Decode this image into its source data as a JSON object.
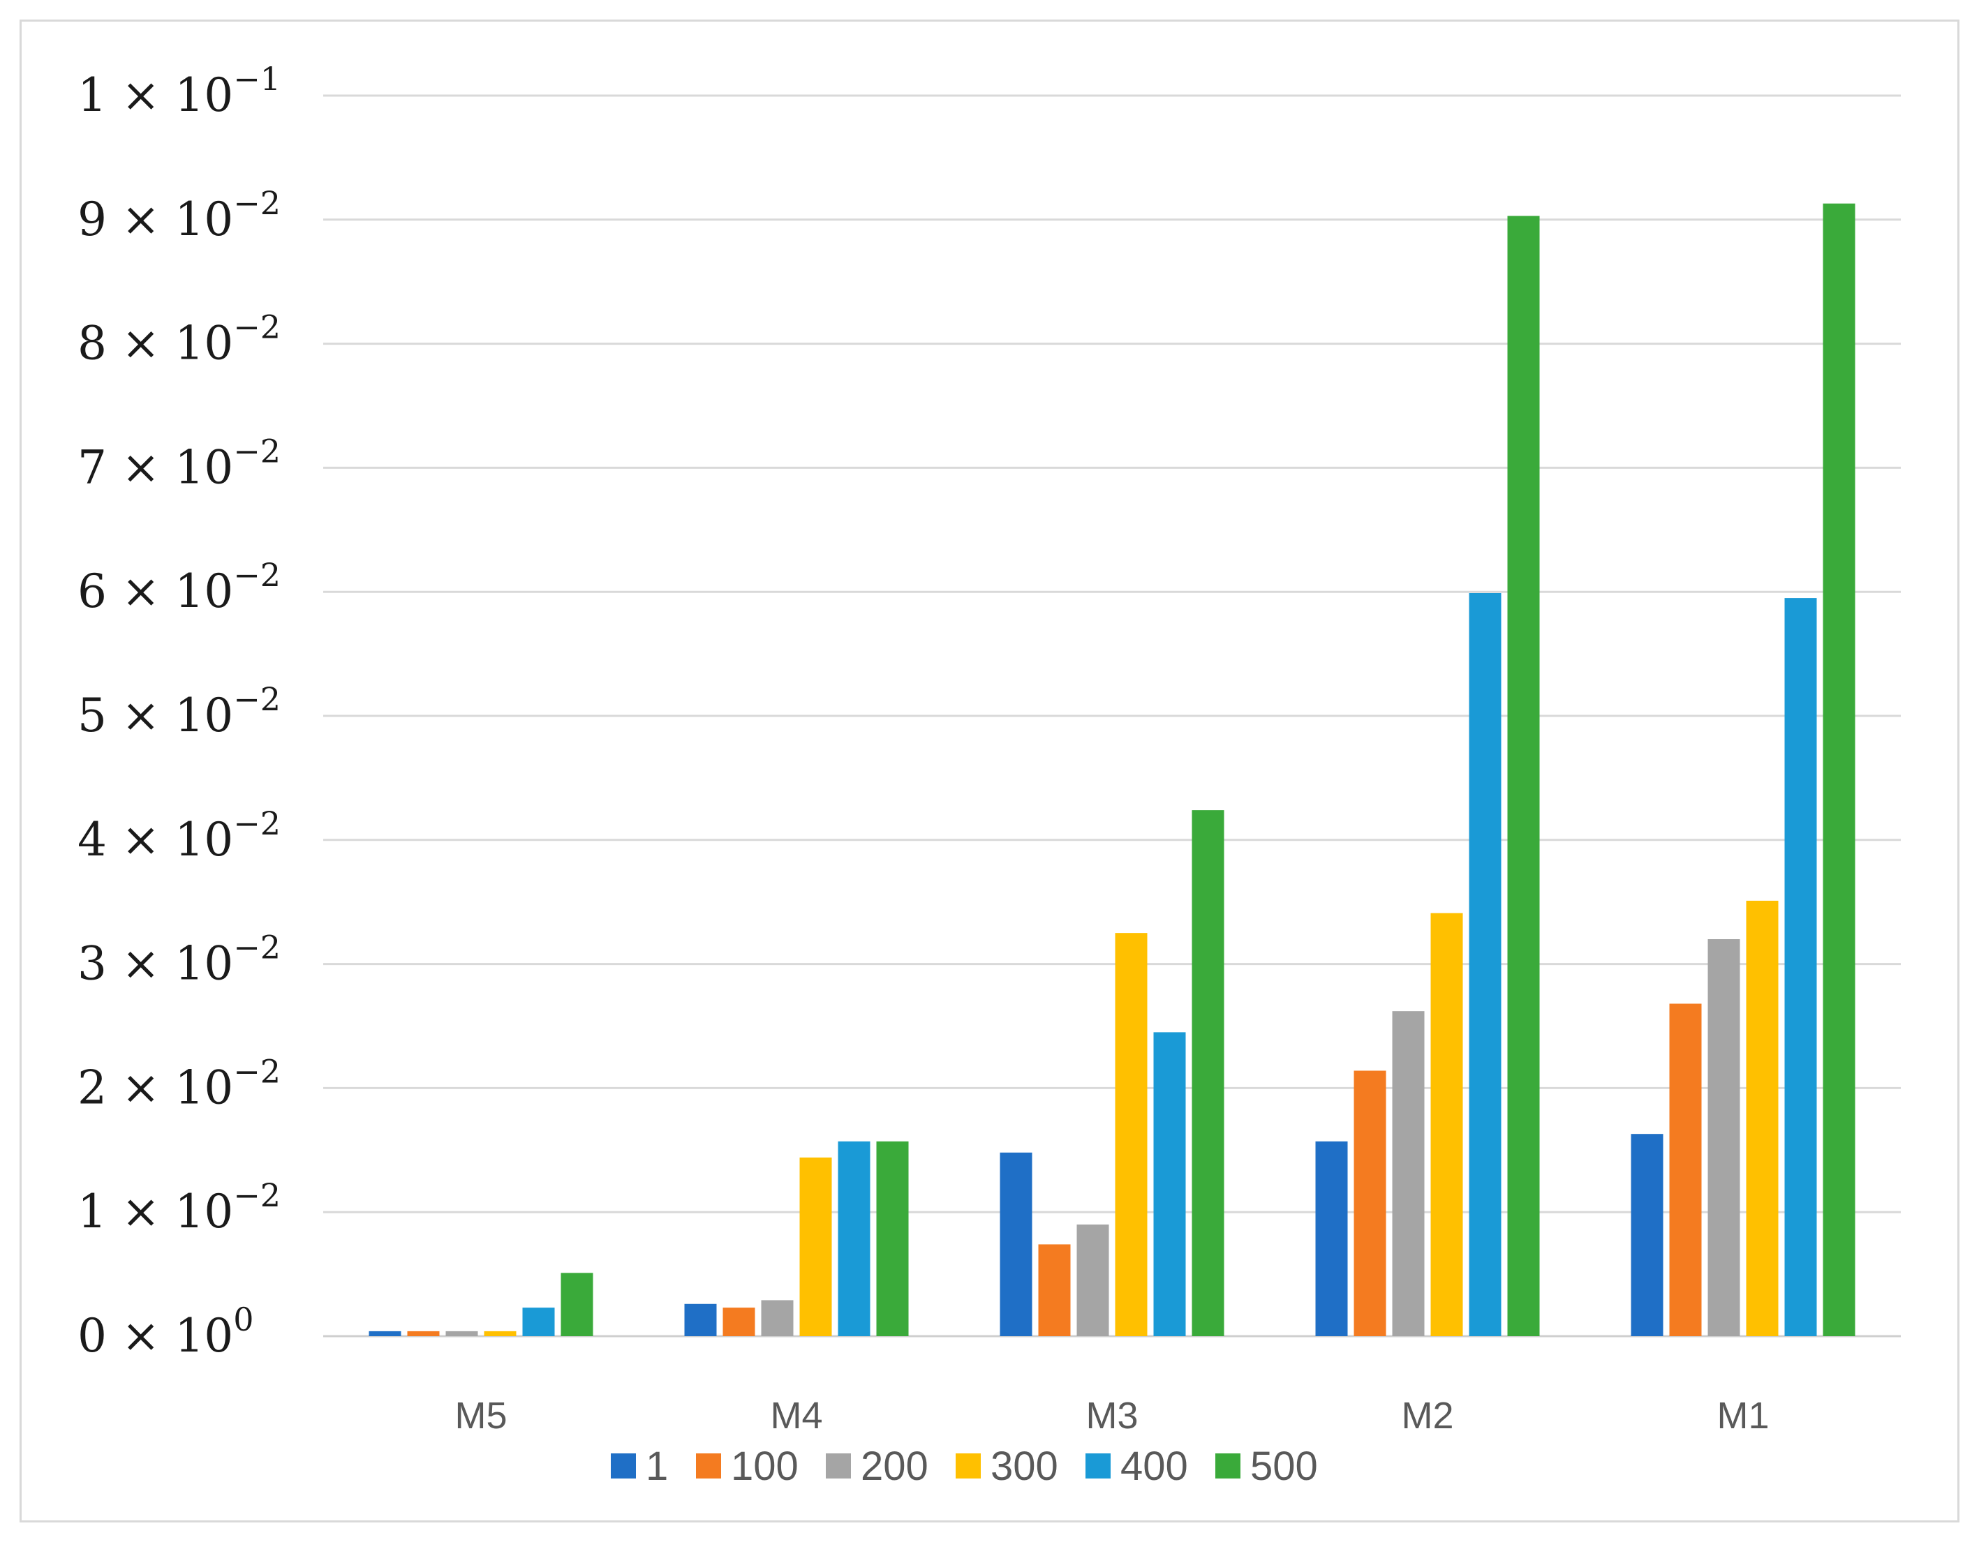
{
  "chart_data": {
    "type": "bar",
    "title": "",
    "xlabel": "",
    "ylabel": "",
    "categories": [
      "M5",
      "M4",
      "M3",
      "M2",
      "M1"
    ],
    "ylim": [
      0,
      0.1
    ],
    "yticks": [
      {
        "value": 0,
        "mantissa": "0",
        "exponent": "0"
      },
      {
        "value": 0.01,
        "mantissa": "1",
        "exponent": "−2"
      },
      {
        "value": 0.02,
        "mantissa": "2",
        "exponent": "−2"
      },
      {
        "value": 0.03,
        "mantissa": "3",
        "exponent": "−2"
      },
      {
        "value": 0.04,
        "mantissa": "4",
        "exponent": "−2"
      },
      {
        "value": 0.05,
        "mantissa": "5",
        "exponent": "−2"
      },
      {
        "value": 0.06,
        "mantissa": "6",
        "exponent": "−2"
      },
      {
        "value": 0.07,
        "mantissa": "7",
        "exponent": "−2"
      },
      {
        "value": 0.08,
        "mantissa": "8",
        "exponent": "−2"
      },
      {
        "value": 0.09,
        "mantissa": "9",
        "exponent": "−2"
      },
      {
        "value": 0.1,
        "mantissa": "1",
        "exponent": "−1"
      }
    ],
    "grid": true,
    "legend_position": "bottom",
    "series": [
      {
        "name": "1",
        "color": "#1f6fc6",
        "values": [
          0.0004,
          0.0026,
          0.0148,
          0.0157,
          0.0163
        ]
      },
      {
        "name": "100",
        "color": "#f47b20",
        "values": [
          0.0004,
          0.0023,
          0.0074,
          0.0214,
          0.0268
        ]
      },
      {
        "name": "200",
        "color": "#a5a5a5",
        "values": [
          0.0004,
          0.0029,
          0.009,
          0.0262,
          0.032
        ]
      },
      {
        "name": "300",
        "color": "#ffc000",
        "values": [
          0.0004,
          0.0144,
          0.0325,
          0.0341,
          0.0351
        ]
      },
      {
        "name": "400",
        "color": "#1a9ad6",
        "values": [
          0.0023,
          0.0157,
          0.0245,
          0.0599,
          0.0595
        ]
      },
      {
        "name": "500",
        "color": "#3aaa3a",
        "values": [
          0.0051,
          0.0157,
          0.0424,
          0.0903,
          0.0913
        ]
      }
    ]
  }
}
